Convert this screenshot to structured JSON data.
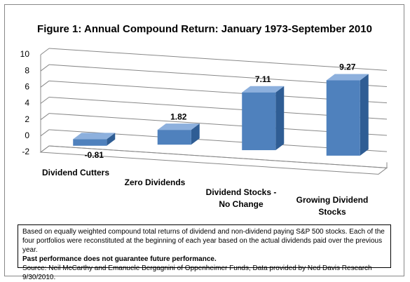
{
  "chart_data": {
    "type": "bar3d",
    "title": "Figure 1: Annual Compound Return: January 1973-September 2010",
    "categories": [
      "Dividend Cutters",
      "Zero Dividends",
      "Dividend Stocks - No Change",
      "Growing Dividend Stocks"
    ],
    "values": [
      -0.81,
      1.82,
      7.11,
      9.27
    ],
    "color": "#4f81bd",
    "ylim": [
      -2,
      10
    ],
    "yticks": [
      -2,
      0,
      2,
      4,
      6,
      8,
      10
    ],
    "grid": true
  },
  "note": {
    "text": "Based on equally weighted compound total returns of dividend and non-dividend paying S&P 500 stocks. Each of the four portfolios were reconstituted at the beginning of each year based on the actual dividends paid over the previous year.",
    "bold": "Past performance does not guarantee future performance.",
    "source": "Source: Neil McCarthy and Emanuele Bergagnini of Oppenheimer Funds, Data provided by Ned Davis Research 9/30/2010."
  }
}
